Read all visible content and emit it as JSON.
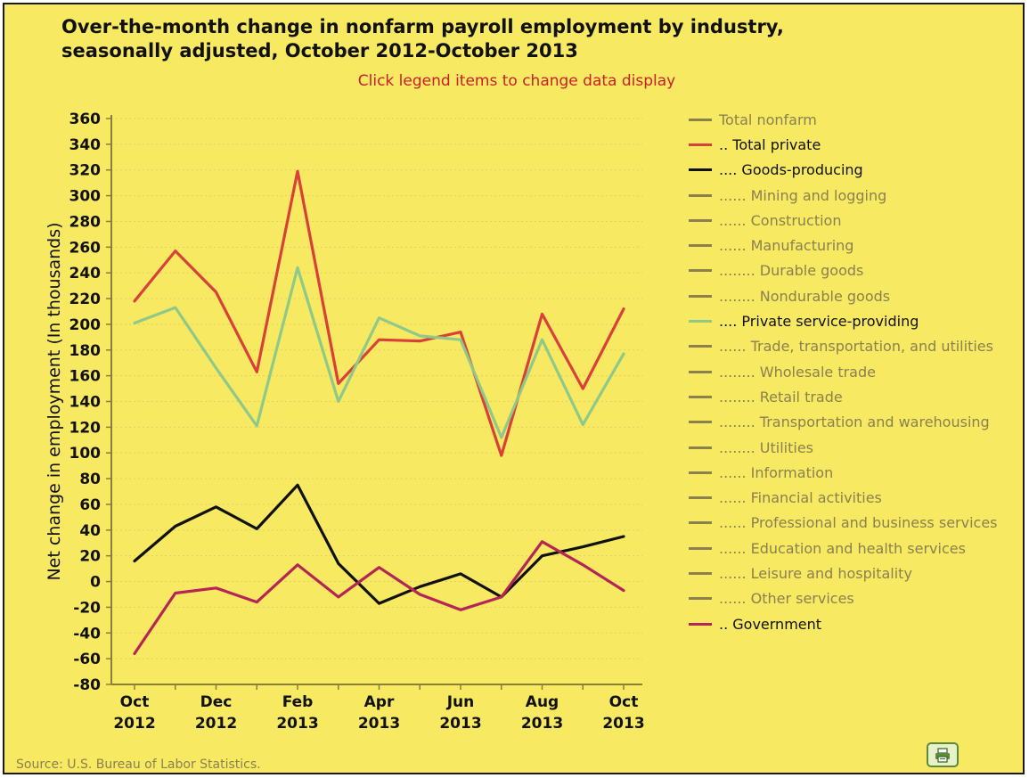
{
  "chart_data": {
    "type": "line",
    "title": "Over-the-month change in nonfarm payroll employment by industry,\nseasonally adjusted, October 2012-October 2013",
    "subtitle": "Click legend items to change data display",
    "ylabel": "Net change in employment (In thousands)",
    "xlabel": "",
    "ylim": [
      -80,
      360
    ],
    "ystep": 20,
    "grid": true,
    "legend_position": "right",
    "categories": [
      "Oct 2012",
      "Nov 2012",
      "Dec 2012",
      "Jan 2013",
      "Feb 2013",
      "Mar 2013",
      "Apr 2013",
      "May 2013",
      "Jun 2013",
      "Jul 2013",
      "Aug 2013",
      "Sep 2013",
      "Oct 2013"
    ],
    "x_tick_labels": [
      {
        "index": 0,
        "lines": [
          "Oct",
          "2012"
        ]
      },
      {
        "index": 2,
        "lines": [
          "Dec",
          "2012"
        ]
      },
      {
        "index": 4,
        "lines": [
          "Feb",
          "2013"
        ]
      },
      {
        "index": 6,
        "lines": [
          "Apr",
          "2013"
        ]
      },
      {
        "index": 8,
        "lines": [
          "Jun",
          "2013"
        ]
      },
      {
        "index": 10,
        "lines": [
          "Aug",
          "2013"
        ]
      },
      {
        "index": 12,
        "lines": [
          "Oct",
          "2013"
        ]
      }
    ],
    "series": [
      {
        "name": "Total private",
        "color": "#d9403a",
        "values": [
          218,
          257,
          225,
          163,
          319,
          154,
          188,
          187,
          194,
          98,
          208,
          150,
          212
        ]
      },
      {
        "name": "Private service-providing",
        "color": "#8ec98a",
        "values": [
          201,
          213,
          166,
          121,
          244,
          140,
          205,
          191,
          188,
          112,
          188,
          122,
          177
        ]
      },
      {
        "name": "Goods-producing",
        "color": "#111111",
        "values": [
          16,
          43,
          58,
          41,
          75,
          14,
          -17,
          -4,
          6,
          -12,
          20,
          27,
          35
        ]
      },
      {
        "name": "Government",
        "color": "#b52555",
        "values": [
          -56,
          -9,
          -5,
          -16,
          13,
          -12,
          11,
          -10,
          -22,
          -12,
          31,
          13,
          -7
        ]
      }
    ]
  },
  "legend": [
    {
      "label": "Total nonfarm",
      "active": false
    },
    {
      "label": ".. Total private",
      "active": true,
      "color": "#d9403a"
    },
    {
      "label": ".... Goods-producing",
      "active": true,
      "color": "#111111"
    },
    {
      "label": "...... Mining and logging",
      "active": false
    },
    {
      "label": "...... Construction",
      "active": false
    },
    {
      "label": "...... Manufacturing",
      "active": false
    },
    {
      "label": "........ Durable goods",
      "active": false
    },
    {
      "label": "........ Nondurable goods",
      "active": false
    },
    {
      "label": ".... Private service-providing",
      "active": true,
      "color": "#8ec98a"
    },
    {
      "label": "...... Trade, transportation, and utilities",
      "active": false
    },
    {
      "label": "........ Wholesale trade",
      "active": false
    },
    {
      "label": "........ Retail trade",
      "active": false
    },
    {
      "label": "........ Transportation and warehousing",
      "active": false
    },
    {
      "label": "........ Utilities",
      "active": false
    },
    {
      "label": "...... Information",
      "active": false
    },
    {
      "label": "...... Financial activities",
      "active": false
    },
    {
      "label": "...... Professional and business services",
      "active": false
    },
    {
      "label": "...... Education and health services",
      "active": false
    },
    {
      "label": "...... Leisure and hospitality",
      "active": false
    },
    {
      "label": "...... Other services",
      "active": false
    },
    {
      "label": ".. Government",
      "active": true,
      "color": "#b52555"
    }
  ],
  "source": "Source: U.S. Bureau of Labor Statistics.",
  "colors": {
    "background": "#f8e962",
    "grid": "#e0cf63",
    "axis": "#8a7f3a",
    "inactive": "#8a8050",
    "hint": "#c8202a"
  },
  "print_button_icon": "printer-icon"
}
